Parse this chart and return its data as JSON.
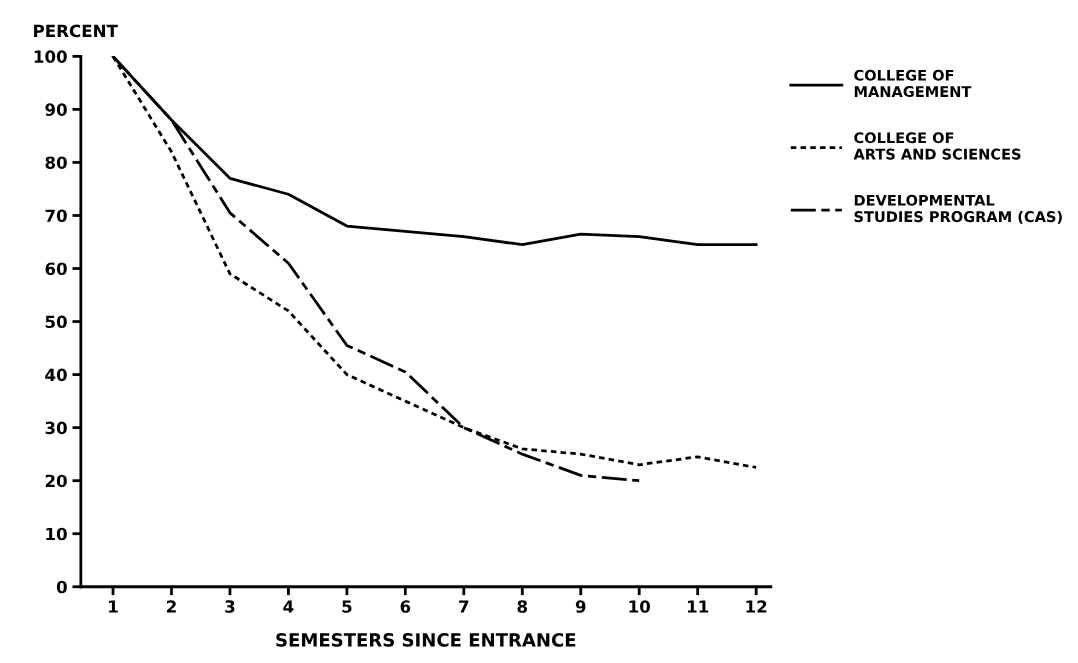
{
  "chart_data": {
    "type": "line",
    "ylabel": "PERCENT",
    "xlabel": "SEMESTERS SINCE ENTRANCE",
    "x": [
      1,
      2,
      3,
      4,
      5,
      6,
      7,
      8,
      9,
      10,
      11,
      12
    ],
    "xlim": [
      0.45,
      12.25
    ],
    "xticks": [
      1,
      2,
      3,
      4,
      5,
      6,
      7,
      8,
      9,
      10,
      11,
      12
    ],
    "ylim": [
      0,
      100
    ],
    "yticks": [
      0,
      10,
      20,
      30,
      40,
      50,
      60,
      70,
      80,
      90,
      100
    ],
    "grid": false,
    "legend": "right",
    "marker": "none",
    "series": [
      {
        "name": "COLLEGE OF\nMANAGEMENT",
        "color": "#000000",
        "line_style": "solid",
        "values": [
          100,
          88,
          77,
          74,
          68,
          67,
          66,
          64.5,
          66.5,
          66,
          64.5,
          64.5
        ]
      },
      {
        "name": "COLLEGE OF\nARTS AND SCIENCES",
        "color": "#000000",
        "line_style": "dotted",
        "values": [
          100,
          82,
          59,
          52,
          40,
          35,
          30,
          26,
          25,
          23,
          24.5,
          22.5
        ]
      },
      {
        "name": "DEVELOPMENTAL\nSTUDIES PROGRAM (CAS)",
        "color": "#000000",
        "line_style": "dashed",
        "values": [
          100,
          88,
          70.5,
          61,
          45.5,
          40.5,
          30,
          25,
          21,
          20,
          null,
          null
        ]
      }
    ]
  }
}
